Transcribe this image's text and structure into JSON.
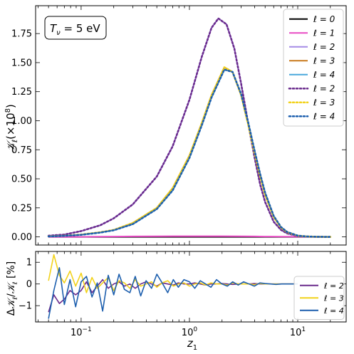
{
  "chart_data": [
    {
      "type": "line",
      "annotation": {
        "text": "T_ν = 5 eV",
        "symbol": "T",
        "subscript": "ν",
        "rest": " = 5 eV"
      },
      "ylabel": {
        "main": "𝒦",
        "sub": "ℓ",
        "rest": "(×10",
        "sup": "8",
        "close": ")"
      },
      "xscale": "log",
      "xlim": [
        0.038,
        28
      ],
      "ylim": [
        -0.07,
        1.99
      ],
      "yticks": [
        0.0,
        0.25,
        0.5,
        0.75,
        1.0,
        1.25,
        1.5,
        1.75
      ],
      "ytick_labels": [
        "0.00",
        "0.25",
        "0.50",
        "0.75",
        "1.00",
        "1.25",
        "1.50",
        "1.75"
      ],
      "legend_position": "top-right",
      "series": [
        {
          "name": "ℓ = 0",
          "style": "solid",
          "color": "#000000",
          "x": [
            0.05,
            0.07,
            0.1,
            0.15,
            0.2,
            0.3,
            0.5,
            0.7,
            1,
            1.5,
            2,
            3,
            4,
            5,
            7,
            10,
            15,
            20
          ],
          "y": [
            0,
            0,
            0,
            0,
            0,
            0,
            0,
            0,
            0,
            0,
            0,
            0,
            0,
            0,
            0,
            0,
            0,
            0
          ]
        },
        {
          "name": "ℓ = 1",
          "style": "solid",
          "color": "#e84bc4",
          "x": [
            0.05,
            0.07,
            0.1,
            0.15,
            0.2,
            0.3,
            0.5,
            0.7,
            1,
            1.5,
            2,
            3,
            4,
            5,
            7,
            10,
            15,
            20
          ],
          "y": [
            0,
            0,
            0,
            0.002,
            0.003,
            0.004,
            0.005,
            0.006,
            0.006,
            0.006,
            0.006,
            0.005,
            0.004,
            0.003,
            0.002,
            0.001,
            0,
            0
          ]
        },
        {
          "name": "ℓ = 2",
          "style": "solid",
          "color": "#a58ce6",
          "x": [
            0.05,
            0.07,
            0.1,
            0.15,
            0.2,
            0.3,
            0.5,
            0.7,
            1,
            1.3,
            1.6,
            1.85,
            2.2,
            2.6,
            3,
            3.5,
            4,
            4.5,
            5,
            6,
            7,
            8,
            10,
            12,
            15,
            20
          ],
          "y": [
            0.01,
            0.02,
            0.05,
            0.1,
            0.16,
            0.28,
            0.52,
            0.78,
            1.18,
            1.55,
            1.8,
            1.88,
            1.83,
            1.62,
            1.32,
            0.97,
            0.68,
            0.45,
            0.3,
            0.13,
            0.06,
            0.03,
            0.007,
            0.003,
            0.001,
            0
          ]
        },
        {
          "name": "ℓ = 3",
          "style": "solid",
          "color": "#c97a1e",
          "x": [
            0.05,
            0.07,
            0.1,
            0.15,
            0.2,
            0.3,
            0.5,
            0.7,
            1,
            1.3,
            1.6,
            2.1,
            2.5,
            3,
            3.5,
            4,
            4.5,
            5,
            6,
            7,
            8,
            10,
            12,
            15,
            20
          ],
          "y": [
            0.005,
            0.01,
            0.02,
            0.04,
            0.06,
            0.12,
            0.25,
            0.42,
            0.7,
            0.98,
            1.22,
            1.46,
            1.42,
            1.22,
            0.96,
            0.72,
            0.52,
            0.36,
            0.17,
            0.08,
            0.04,
            0.01,
            0.004,
            0.001,
            0
          ]
        },
        {
          "name": "ℓ = 4",
          "style": "solid",
          "color": "#4aa8dc",
          "x": [
            0.05,
            0.07,
            0.1,
            0.15,
            0.2,
            0.3,
            0.5,
            0.7,
            1,
            1.3,
            1.6,
            2.1,
            2.5,
            3,
            3.5,
            4,
            4.5,
            5,
            6,
            7,
            8,
            10,
            12,
            15,
            20
          ],
          "y": [
            0.004,
            0.009,
            0.018,
            0.037,
            0.057,
            0.11,
            0.24,
            0.4,
            0.68,
            0.96,
            1.2,
            1.44,
            1.42,
            1.23,
            0.98,
            0.74,
            0.54,
            0.38,
            0.18,
            0.085,
            0.042,
            0.011,
            0.004,
            0.001,
            0
          ]
        },
        {
          "name": "ℓ = 2",
          "style": "dotted",
          "color": "#6a2b8c",
          "x": [
            0.05,
            0.07,
            0.1,
            0.15,
            0.2,
            0.3,
            0.5,
            0.7,
            1,
            1.3,
            1.6,
            1.85,
            2.2,
            2.6,
            3,
            3.5,
            4,
            4.5,
            5,
            6,
            7,
            8,
            10,
            12,
            15,
            20
          ],
          "y": [
            0.01,
            0.02,
            0.05,
            0.1,
            0.16,
            0.28,
            0.52,
            0.78,
            1.18,
            1.55,
            1.8,
            1.88,
            1.83,
            1.62,
            1.32,
            0.97,
            0.68,
            0.45,
            0.3,
            0.13,
            0.06,
            0.03,
            0.007,
            0.003,
            0.001,
            0
          ]
        },
        {
          "name": "ℓ = 3",
          "style": "dotted",
          "color": "#f2d21b",
          "x": [
            0.05,
            0.07,
            0.1,
            0.15,
            0.2,
            0.3,
            0.5,
            0.7,
            1,
            1.3,
            1.6,
            2.1,
            2.5,
            3,
            3.5,
            4,
            4.5,
            5,
            6,
            7,
            8,
            10,
            12,
            15,
            20
          ],
          "y": [
            0.005,
            0.01,
            0.02,
            0.04,
            0.06,
            0.12,
            0.25,
            0.42,
            0.7,
            0.98,
            1.22,
            1.46,
            1.42,
            1.22,
            0.96,
            0.72,
            0.52,
            0.36,
            0.17,
            0.08,
            0.04,
            0.01,
            0.004,
            0.001,
            0
          ]
        },
        {
          "name": "ℓ = 4",
          "style": "dotted",
          "color": "#1d5fae",
          "x": [
            0.05,
            0.07,
            0.1,
            0.15,
            0.2,
            0.3,
            0.5,
            0.7,
            1,
            1.3,
            1.6,
            2.1,
            2.5,
            3,
            3.5,
            4,
            4.5,
            5,
            6,
            7,
            8,
            10,
            12,
            15,
            20
          ],
          "y": [
            0.004,
            0.009,
            0.018,
            0.037,
            0.057,
            0.11,
            0.24,
            0.4,
            0.68,
            0.96,
            1.2,
            1.44,
            1.42,
            1.23,
            0.98,
            0.74,
            0.54,
            0.38,
            0.18,
            0.085,
            0.042,
            0.011,
            0.004,
            0.001,
            0
          ]
        }
      ]
    },
    {
      "type": "line",
      "xlabel": {
        "main": "z",
        "sub": "1"
      },
      "ylabel": {
        "pre": "Δ",
        "main": "𝒦",
        "sub": "ℓ",
        "mid": "/",
        "main2": "𝒦",
        "sub2": "ℓ",
        "rest": " [%]"
      },
      "xscale": "log",
      "xlim": [
        0.038,
        28
      ],
      "ylim": [
        -1.75,
        1.5
      ],
      "yticks": [
        -1,
        0,
        1
      ],
      "ytick_labels": [
        "−1",
        "0",
        "1"
      ],
      "xticks": [
        0.1,
        1,
        10
      ],
      "xtick_labels": [
        {
          "base": "10",
          "exp": "−1"
        },
        {
          "base": "10",
          "exp": "0"
        },
        {
          "base": "10",
          "exp": "1"
        }
      ],
      "legend_position": "bottom-right",
      "series": [
        {
          "name": "ℓ = 2",
          "color": "#6a2b8c",
          "x": [
            0.05,
            0.056,
            0.063,
            0.07,
            0.079,
            0.089,
            0.1,
            0.112,
            0.126,
            0.141,
            0.158,
            0.178,
            0.2,
            0.224,
            0.251,
            0.282,
            0.316,
            0.355,
            0.398,
            0.447,
            0.5,
            0.56,
            0.63,
            0.71,
            0.79,
            0.89,
            1,
            1.12,
            1.26,
            1.41,
            1.58,
            1.78,
            2,
            2.24,
            2.51,
            2.82,
            3.16,
            3.55,
            3.98,
            4.47,
            5,
            5.6,
            6.3,
            7.1,
            7.9,
            8.9,
            10
          ],
          "y": [
            -1.3,
            -0.5,
            -0.9,
            -0.7,
            -0.3,
            -0.5,
            -0.3,
            0.1,
            -0.4,
            -0.1,
            0.2,
            -0.2,
            0,
            0.1,
            -0.1,
            0,
            -0.2,
            0,
            0.1,
            0,
            -0.1,
            0.05,
            0,
            -0.05,
            0.05,
            0,
            0,
            0.05,
            0,
            -0.05,
            0,
            0,
            0.02,
            0,
            -0.02,
            0,
            0,
            0,
            0.02,
            0,
            0,
            0,
            0,
            0,
            0,
            0,
            0
          ]
        },
        {
          "name": "ℓ = 3",
          "color": "#f2d21b",
          "x": [
            0.05,
            0.056,
            0.063,
            0.07,
            0.079,
            0.089,
            0.1,
            0.112,
            0.126,
            0.141,
            0.158,
            0.178,
            0.2,
            0.224,
            0.251,
            0.282,
            0.316,
            0.355,
            0.398,
            0.447,
            0.5,
            0.56,
            0.63,
            0.71,
            0.79,
            0.89,
            1,
            1.12,
            1.26,
            1.41,
            1.58,
            1.78,
            2,
            2.24,
            2.51,
            2.82,
            3.16,
            3.55,
            3.98,
            4.47,
            5,
            5.6,
            6.3,
            7.1,
            7.9,
            8.9,
            10
          ],
          "y": [
            0.15,
            1.35,
            0.4,
            0.05,
            0.6,
            -0.1,
            0.5,
            -0.4,
            0.3,
            -0.2,
            0.05,
            0.3,
            -0.3,
            0.15,
            0.05,
            -0.2,
            0.2,
            -0.1,
            0,
            0.1,
            -0.15,
            0.05,
            0.15,
            -0.1,
            0,
            0.05,
            -0.1,
            0,
            0.05,
            -0.05,
            0.05,
            0,
            0,
            -0.05,
            0.05,
            0,
            0,
            0,
            -0.03,
            0.02,
            0,
            0,
            0,
            0,
            0,
            0,
            0
          ]
        },
        {
          "name": "ℓ = 4",
          "color": "#1d5fae",
          "x": [
            0.05,
            0.056,
            0.063,
            0.07,
            0.079,
            0.089,
            0.1,
            0.112,
            0.126,
            0.141,
            0.158,
            0.178,
            0.2,
            0.224,
            0.251,
            0.282,
            0.316,
            0.355,
            0.398,
            0.447,
            0.5,
            0.56,
            0.63,
            0.71,
            0.79,
            0.89,
            1,
            1.12,
            1.26,
            1.41,
            1.58,
            1.78,
            2,
            2.24,
            2.51,
            2.82,
            3.16,
            3.55,
            3.98,
            4.47,
            5,
            5.6,
            6.3,
            7.1,
            7.9,
            8.9,
            10
          ],
          "y": [
            -1.6,
            -0.3,
            0.75,
            -0.95,
            0.2,
            -1.05,
            0.1,
            0.35,
            -0.6,
            0.05,
            -1.25,
            0.4,
            -0.5,
            0.45,
            -0.25,
            -0.4,
            0.35,
            -0.55,
            0.15,
            -0.2,
            0.45,
            0.05,
            -0.4,
            0.2,
            -0.15,
            0.2,
            0.1,
            -0.2,
            0.15,
            0,
            -0.15,
            0.2,
            0,
            -0.1,
            0.1,
            -0.05,
            0.1,
            0,
            -0.1,
            0.05,
            0.02,
            0,
            -0.02,
            0,
            0,
            0,
            0
          ]
        }
      ]
    }
  ]
}
